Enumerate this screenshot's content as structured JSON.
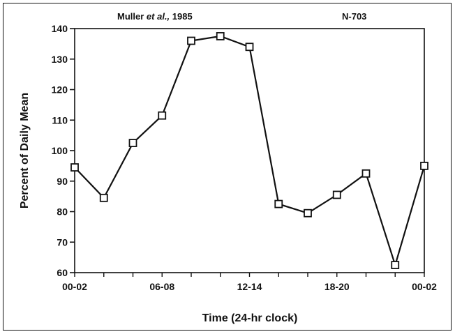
{
  "chart_data": {
    "type": "line",
    "citation": {
      "author": "Muller",
      "etal": "et al.,",
      "year": "1985"
    },
    "sample_size": "N-703",
    "xlabel": "Time (24-hr clock)",
    "ylabel": "Percent of Daily Mean",
    "ylim": [
      60,
      140
    ],
    "yticks": [
      60,
      70,
      80,
      90,
      100,
      110,
      120,
      130,
      140
    ],
    "xlim": [
      0,
      24
    ],
    "xtick_labels": [
      {
        "at": 0,
        "label": "00-02"
      },
      {
        "at": 6,
        "label": "06-08"
      },
      {
        "at": 12,
        "label": "12-14"
      },
      {
        "at": 18,
        "label": "18-20"
      },
      {
        "at": 24,
        "label": "00-02"
      }
    ],
    "x": [
      0,
      2,
      4,
      6,
      8,
      10,
      12,
      14,
      16,
      18,
      20,
      22,
      24
    ],
    "series": [
      {
        "values": [
          94.5,
          84.5,
          102.5,
          111.5,
          136,
          137.5,
          134,
          82.5,
          79.5,
          85.5,
          92.5,
          62.5,
          95
        ]
      }
    ],
    "grid": false,
    "marker": "open-square",
    "line_color": "#111111"
  }
}
